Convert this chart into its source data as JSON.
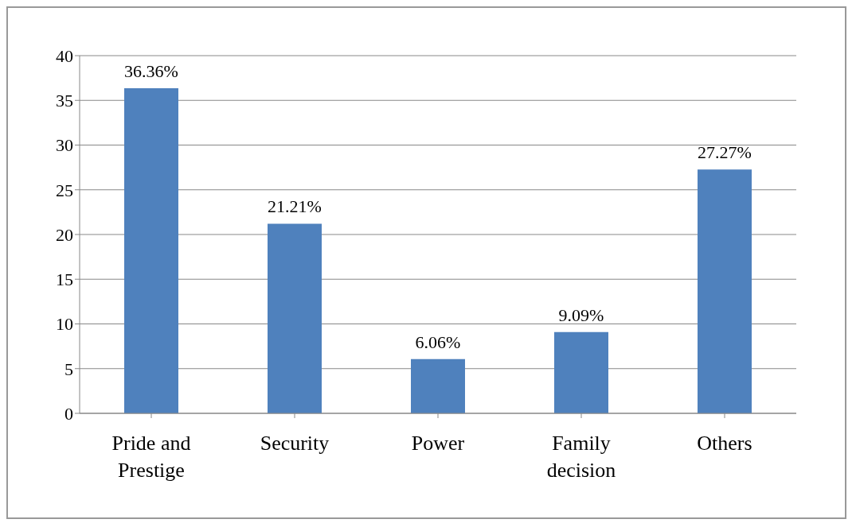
{
  "chart_data": {
    "type": "bar",
    "categories": [
      "Pride and Prestige",
      "Security",
      "Power",
      "Family decision",
      "Others"
    ],
    "values": [
      36.36,
      21.21,
      6.06,
      9.09,
      27.27
    ],
    "value_labels": [
      "36.36%",
      "21.21%",
      "6.06%",
      "9.09%",
      "27.27%"
    ],
    "color": "#4f81bd",
    "ylim": [
      0,
      40
    ],
    "yticks": [
      0,
      5,
      10,
      15,
      20,
      25,
      30,
      35,
      40
    ],
    "grid": "y"
  }
}
